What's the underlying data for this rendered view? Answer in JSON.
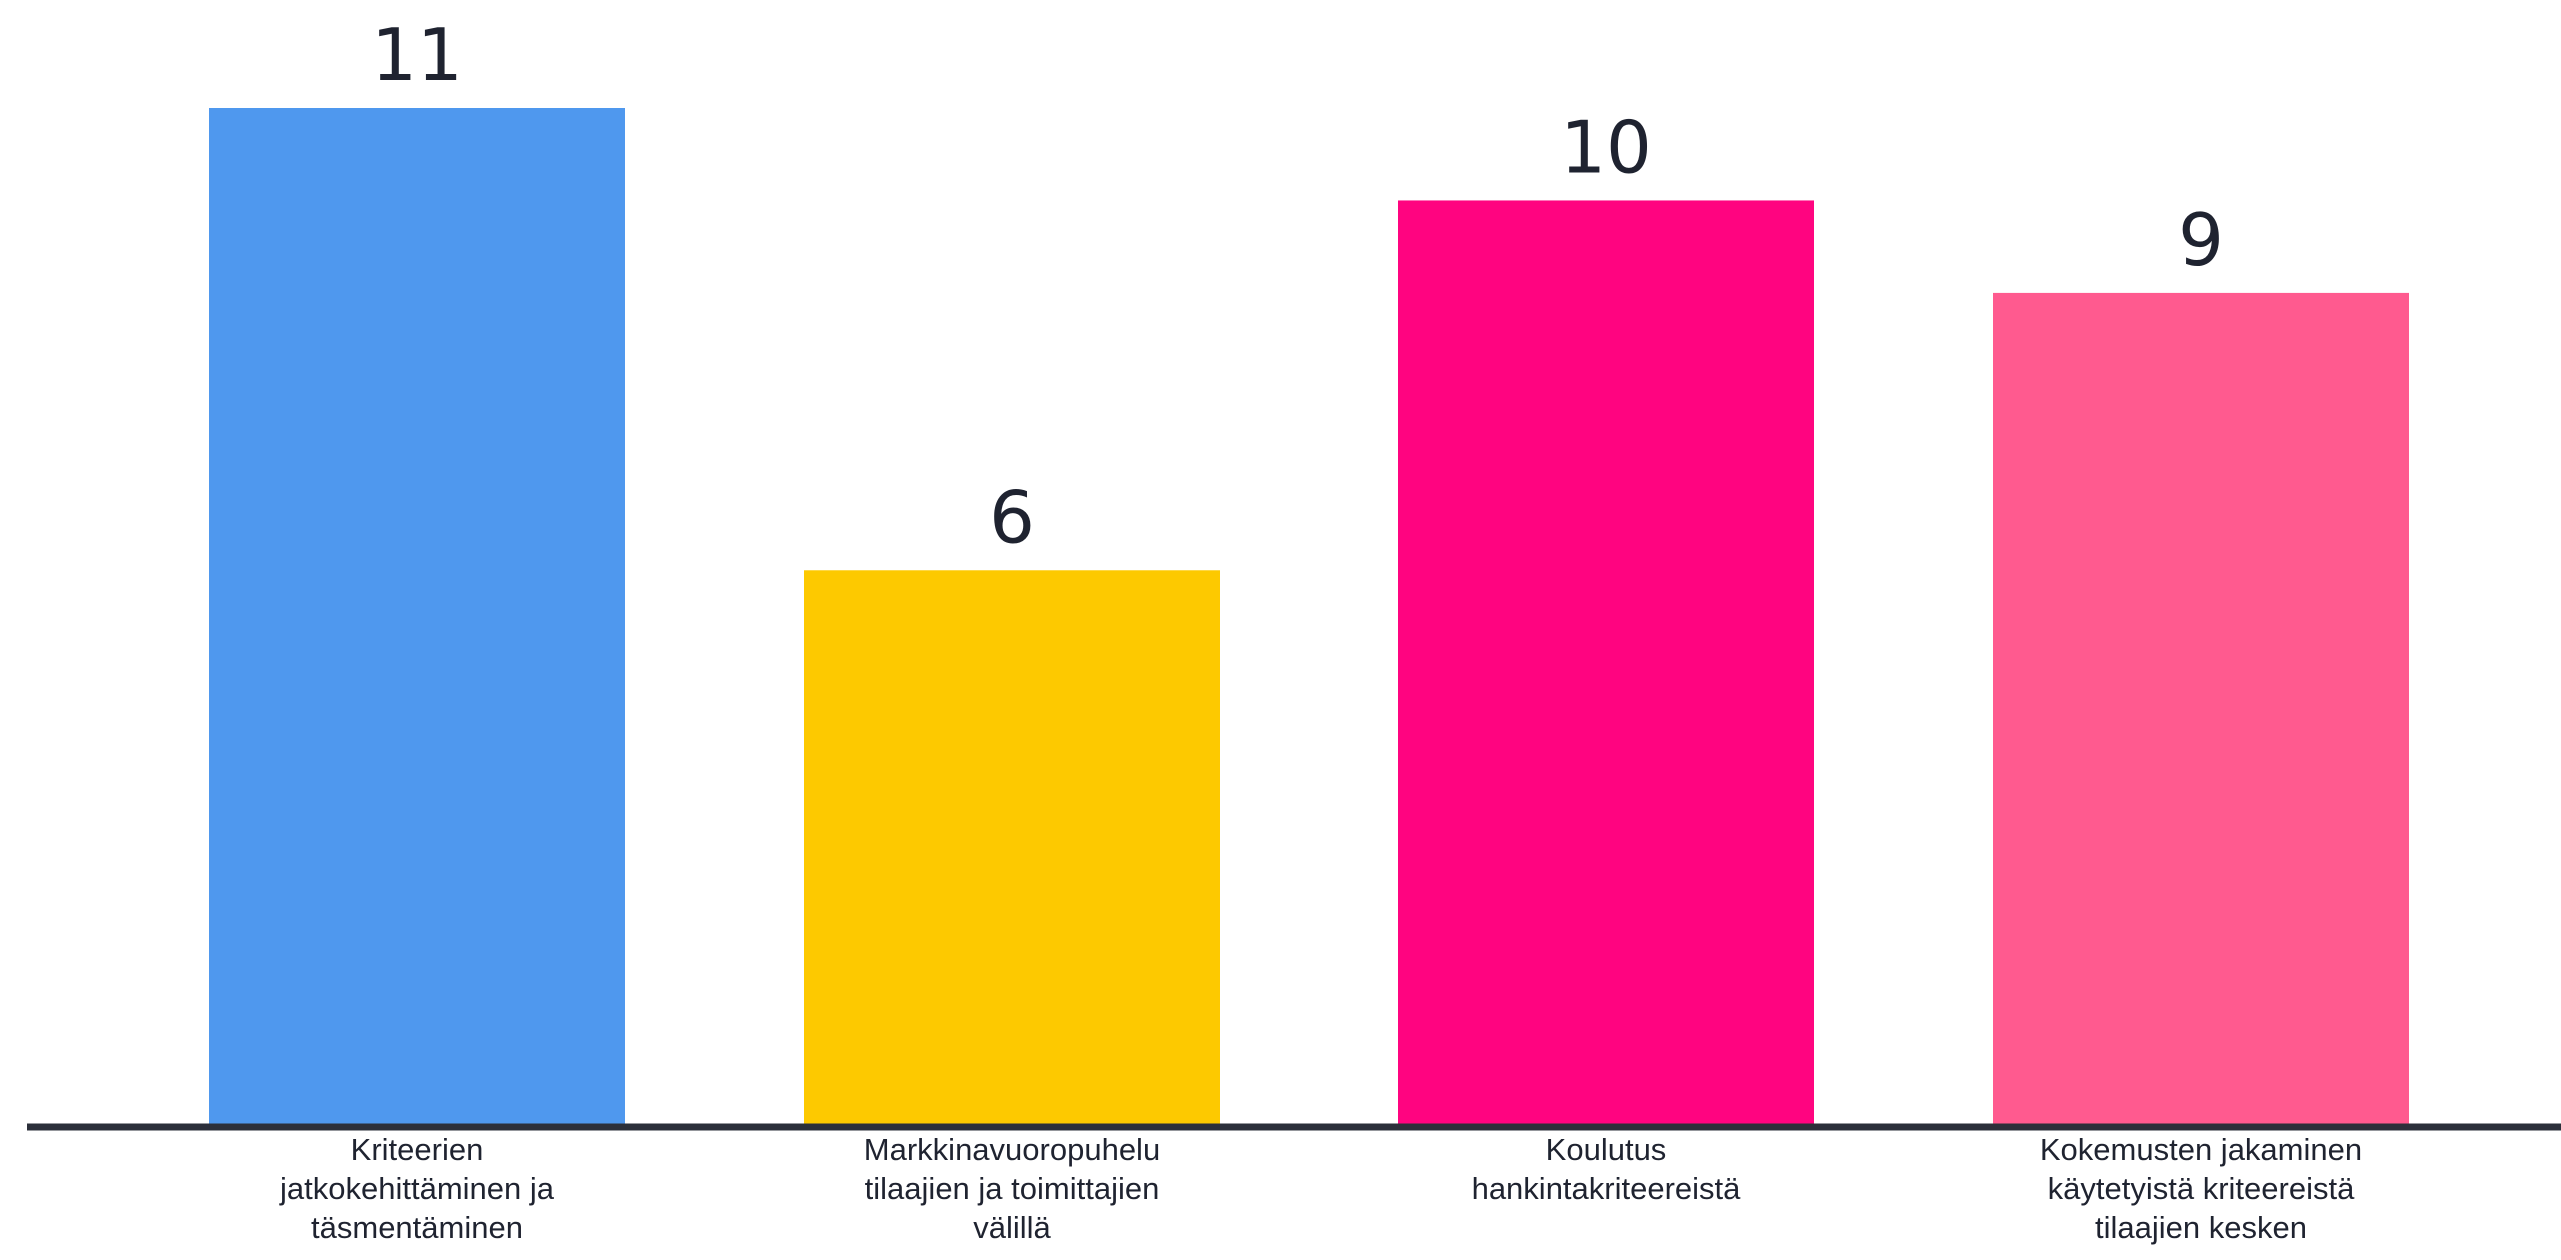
{
  "chart_data": {
    "type": "bar",
    "title": "",
    "xlabel": "",
    "ylabel": "",
    "ylim": [
      0,
      11
    ],
    "grid": false,
    "legend": "none",
    "categories": [
      [
        "Kriteerien",
        "jatkokehittäminen ja",
        "täsmentäminen"
      ],
      [
        "Markkinavuoropuhelu",
        "tilaajien ja toimittajien",
        "välillä"
      ],
      [
        "Koulutus",
        "hankintakriteereistä"
      ],
      [
        "Kokemusten jakaminen",
        "käytetyistä kriteereistä",
        "tilaajien kesken"
      ]
    ],
    "values": [
      11,
      6,
      10,
      9
    ],
    "colors": [
      "#4f98ee",
      "#fdc900",
      "#ff0480",
      "#ff5a8f"
    ],
    "axis_color": "#2b2f3a"
  }
}
